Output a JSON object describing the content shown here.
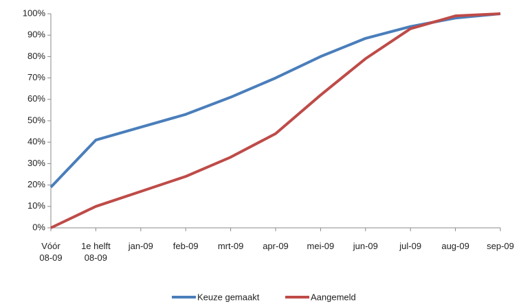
{
  "chart_data": {
    "type": "line",
    "categories": [
      "Vóór\n08-09",
      "1e helft\n08-09",
      "jan-09",
      "feb-09",
      "mrt-09",
      "apr-09",
      "mei-09",
      "jun-09",
      "jul-09",
      "aug-09",
      "sep-09"
    ],
    "series": [
      {
        "name": "Keuze gemaakt",
        "color": "#4a7ebb",
        "values": [
          19,
          41,
          47,
          53,
          61,
          70,
          80,
          88.5,
          94,
          98,
          100
        ]
      },
      {
        "name": "Aangemeld",
        "color": "#be4b48",
        "values": [
          0,
          10,
          17,
          24,
          33,
          44,
          62,
          79,
          93,
          99,
          100
        ]
      }
    ],
    "ylim": [
      0,
      100
    ],
    "yticks": [
      {
        "value": 0,
        "label": "0%"
      },
      {
        "value": 10,
        "label": "10%"
      },
      {
        "value": 20,
        "label": "20%"
      },
      {
        "value": 30,
        "label": "30%"
      },
      {
        "value": 40,
        "label": "40%"
      },
      {
        "value": 50,
        "label": "50%"
      },
      {
        "value": 60,
        "label": "60%"
      },
      {
        "value": 70,
        "label": "70%"
      },
      {
        "value": 80,
        "label": "80%"
      },
      {
        "value": 90,
        "label": "90%"
      },
      {
        "value": 100,
        "label": "100%"
      }
    ],
    "grid": false,
    "legend": "bottom"
  }
}
